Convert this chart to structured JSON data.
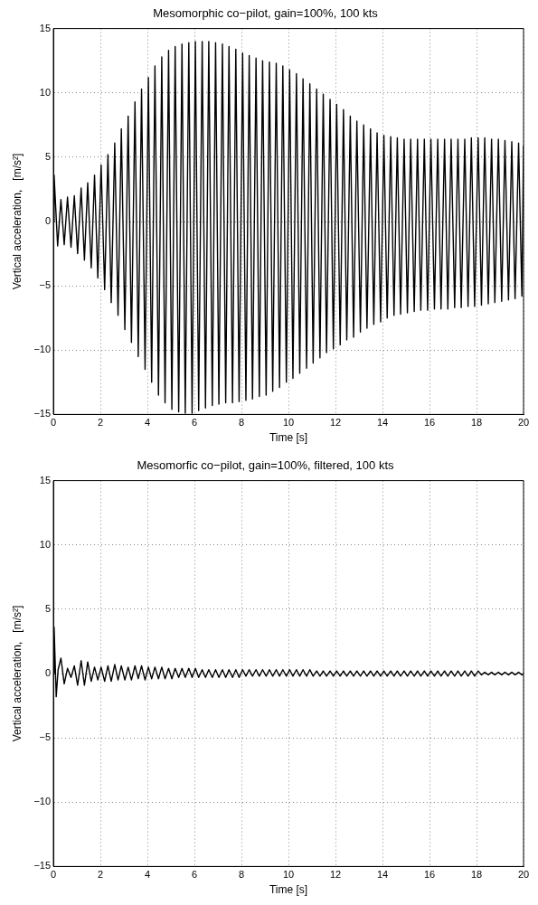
{
  "chart_data": [
    {
      "type": "line",
      "title": "Mesomorphic co−pilot, gain=100%, 100 kts",
      "xlabel": "Time [s]",
      "ylabel": "Vertical acceleration,   [m/s²]",
      "xlim": [
        0,
        20
      ],
      "xticks": [
        0,
        2,
        4,
        6,
        8,
        10,
        12,
        14,
        16,
        18,
        20
      ],
      "ylim": [
        -15,
        15
      ],
      "yticks": [
        -15,
        -10,
        -5,
        0,
        5,
        10,
        15
      ],
      "grid": true,
      "marker": "none",
      "series": [
        {
          "color": "#000000",
          "x": [
            0,
            0.03,
            0.18,
            0.32,
            0.46,
            0.6,
            0.75,
            0.89,
            1.03,
            1.18,
            1.32,
            1.46,
            1.61,
            1.75,
            1.89,
            2.03,
            2.18,
            2.32,
            2.46,
            2.61,
            2.75,
            2.89,
            3.04,
            3.18,
            3.32,
            3.47,
            3.61,
            3.75,
            3.9,
            4.04,
            4.18,
            4.32,
            4.47,
            4.61,
            4.75,
            4.9,
            5.04,
            5.18,
            5.33,
            5.47,
            5.61,
            5.76,
            5.9,
            6.04,
            6.18,
            6.33,
            6.47,
            6.61,
            6.76,
            6.9,
            7.04,
            7.19,
            7.33,
            7.47,
            7.62,
            7.76,
            7.9,
            8.05,
            8.19,
            8.33,
            8.47,
            8.62,
            8.76,
            8.9,
            9.05,
            9.19,
            9.33,
            9.48,
            9.62,
            9.76,
            9.91,
            10.05,
            10.19,
            10.34,
            10.48,
            10.62,
            10.77,
            10.91,
            11.05,
            11.2,
            11.34,
            11.48,
            11.62,
            11.77,
            11.91,
            12.05,
            12.2,
            12.34,
            12.48,
            12.63,
            12.77,
            12.91,
            13.06,
            13.2,
            13.34,
            13.49,
            13.63,
            13.77,
            13.92,
            14.06,
            14.2,
            14.35,
            14.49,
            14.63,
            14.77,
            14.92,
            15.06,
            15.2,
            15.35,
            15.49,
            15.63,
            15.78,
            15.92,
            16.06,
            16.21,
            16.35,
            16.49,
            16.64,
            16.78,
            16.92,
            17.07,
            17.21,
            17.35,
            17.5,
            17.64,
            17.78,
            17.92,
            18.07,
            18.21,
            18.35,
            18.5,
            18.64,
            18.78,
            18.93,
            19.07,
            19.21,
            19.36,
            19.5,
            19.64,
            19.79,
            19.93,
            20
          ],
          "values": [
            0,
            3.6,
            -1.9,
            1.7,
            -1.8,
            1.9,
            -2.0,
            2.0,
            -2.5,
            2.6,
            -3.0,
            3.0,
            -3.6,
            3.6,
            -4.4,
            4.4,
            -5.3,
            5.2,
            -6.3,
            6.1,
            -7.3,
            7.2,
            -8.4,
            8.2,
            -9.4,
            9.3,
            -10.5,
            10.3,
            -11.5,
            11.2,
            -12.5,
            12.1,
            -13.5,
            12.8,
            -14.1,
            13.3,
            -14.6,
            13.6,
            -14.8,
            13.8,
            -14.9,
            13.9,
            -14.9,
            14.0,
            -14.7,
            14.0,
            -14.5,
            14.0,
            -14.3,
            13.9,
            -14.2,
            13.8,
            -14.1,
            13.6,
            -14.1,
            13.4,
            -14.0,
            13.1,
            -13.9,
            12.9,
            -13.8,
            12.7,
            -13.6,
            12.5,
            -13.5,
            12.4,
            -13.2,
            12.3,
            -12.9,
            12.1,
            -12.5,
            11.8,
            -12.2,
            11.5,
            -11.8,
            11.1,
            -11.4,
            10.7,
            -11.0,
            10.3,
            -10.6,
            9.9,
            -10.2,
            9.5,
            -9.9,
            9.1,
            -9.6,
            8.7,
            -9.2,
            8.2,
            -9.0,
            7.8,
            -8.6,
            7.5,
            -8.3,
            7.2,
            -8.0,
            6.9,
            -7.8,
            6.7,
            -7.5,
            6.6,
            -7.3,
            6.5,
            -7.2,
            6.4,
            -7.1,
            6.4,
            -7.0,
            6.4,
            -6.9,
            6.4,
            -6.9,
            6.4,
            -6.8,
            6.4,
            -6.8,
            6.4,
            -6.8,
            6.4,
            -6.7,
            6.4,
            -6.7,
            6.4,
            -6.6,
            6.5,
            -6.6,
            6.5,
            -6.5,
            6.5,
            -6.4,
            6.4,
            -6.3,
            6.4,
            -6.2,
            6.3,
            -6.1,
            6.2,
            -6.0,
            6.1,
            -5.8,
            5.9
          ]
        }
      ]
    },
    {
      "type": "line",
      "title": "Mesomorfic co−pilot, gain=100%, filtered, 100 kts",
      "xlabel": "Time [s]",
      "ylabel": "Vertical acceleration,   [m/s²]",
      "xlim": [
        0,
        20
      ],
      "xticks": [
        0,
        2,
        4,
        6,
        8,
        10,
        12,
        14,
        16,
        18,
        20
      ],
      "ylim": [
        -15,
        15
      ],
      "yticks": [
        -15,
        -10,
        -5,
        0,
        5,
        10,
        15
      ],
      "grid": true,
      "marker": "none",
      "series": [
        {
          "color": "#000000",
          "x": [
            0,
            0.03,
            0.12,
            0.2,
            0.32,
            0.46,
            0.6,
            0.75,
            0.89,
            1.03,
            1.18,
            1.32,
            1.46,
            1.61,
            1.75,
            1.89,
            2.03,
            2.18,
            2.32,
            2.46,
            2.61,
            2.75,
            2.89,
            3.04,
            3.18,
            3.32,
            3.47,
            3.61,
            3.75,
            3.9,
            4.04,
            4.18,
            4.32,
            4.47,
            4.61,
            4.75,
            4.9,
            5.04,
            5.18,
            5.33,
            5.47,
            5.61,
            5.76,
            5.9,
            6.04,
            6.18,
            6.33,
            6.47,
            6.61,
            6.76,
            6.9,
            7.04,
            7.19,
            7.33,
            7.47,
            7.62,
            7.76,
            7.9,
            8.05,
            8.19,
            8.33,
            8.47,
            8.62,
            8.76,
            8.9,
            9.05,
            9.19,
            9.33,
            9.48,
            9.62,
            9.76,
            9.91,
            10.05,
            10.19,
            10.34,
            10.48,
            10.62,
            10.77,
            10.91,
            11.05,
            11.2,
            11.34,
            11.48,
            11.62,
            11.77,
            11.91,
            12.05,
            12.2,
            12.34,
            12.48,
            12.63,
            12.77,
            12.91,
            13.06,
            13.2,
            13.34,
            13.49,
            13.63,
            13.77,
            13.92,
            14.06,
            14.2,
            14.35,
            14.49,
            14.63,
            14.77,
            14.92,
            15.06,
            15.2,
            15.35,
            15.49,
            15.63,
            15.78,
            15.92,
            16.06,
            16.21,
            16.35,
            16.49,
            16.64,
            16.78,
            16.92,
            17.07,
            17.21,
            17.35,
            17.5,
            17.64,
            17.78,
            17.92,
            18.07,
            18.21,
            18.35,
            18.5,
            18.64,
            18.78,
            18.93,
            19.07,
            19.21,
            19.36,
            19.5,
            19.64,
            19.79,
            19.93,
            20
          ],
          "values": [
            0,
            3.6,
            -1.8,
            0.3,
            1.2,
            -0.8,
            0.4,
            -0.3,
            0.6,
            -0.9,
            1.0,
            -0.9,
            0.9,
            -0.6,
            0.5,
            -0.5,
            0.5,
            -0.6,
            0.6,
            -0.6,
            0.7,
            -0.5,
            0.6,
            -0.5,
            0.5,
            -0.5,
            0.6,
            -0.4,
            0.6,
            -0.5,
            0.5,
            -0.4,
            0.5,
            -0.4,
            0.5,
            -0.4,
            0.4,
            -0.4,
            0.4,
            -0.3,
            0.4,
            -0.3,
            0.4,
            -0.3,
            0.4,
            -0.3,
            0.3,
            -0.3,
            0.3,
            -0.3,
            0.3,
            -0.3,
            0.3,
            -0.3,
            0.3,
            -0.3,
            0.3,
            -0.3,
            0.3,
            -0.2,
            0.3,
            -0.2,
            0.3,
            -0.2,
            0.3,
            -0.2,
            0.3,
            -0.2,
            0.3,
            -0.2,
            0.3,
            -0.2,
            0.3,
            -0.2,
            0.3,
            -0.2,
            0.3,
            -0.2,
            0.3,
            -0.2,
            0.2,
            -0.2,
            0.2,
            -0.2,
            0.2,
            -0.2,
            0.2,
            -0.2,
            0.2,
            -0.2,
            0.2,
            -0.2,
            0.2,
            -0.2,
            0.2,
            -0.2,
            0.2,
            -0.2,
            0.2,
            -0.2,
            0.2,
            -0.2,
            0.2,
            -0.2,
            0.2,
            -0.2,
            0.2,
            -0.2,
            0.2,
            -0.2,
            0.2,
            -0.2,
            0.2,
            -0.2,
            0.2,
            -0.2,
            0.2,
            -0.2,
            0.2,
            -0.2,
            0.2,
            -0.2,
            0.2,
            -0.2,
            0.2,
            -0.2,
            0.2,
            -0.2,
            0.2,
            -0.1,
            0.1,
            -0.1,
            0.1,
            -0.1,
            0.1,
            -0.1,
            0.1,
            -0.1,
            0.1,
            -0.1,
            0.1,
            -0.1,
            0.0
          ]
        }
      ]
    }
  ]
}
